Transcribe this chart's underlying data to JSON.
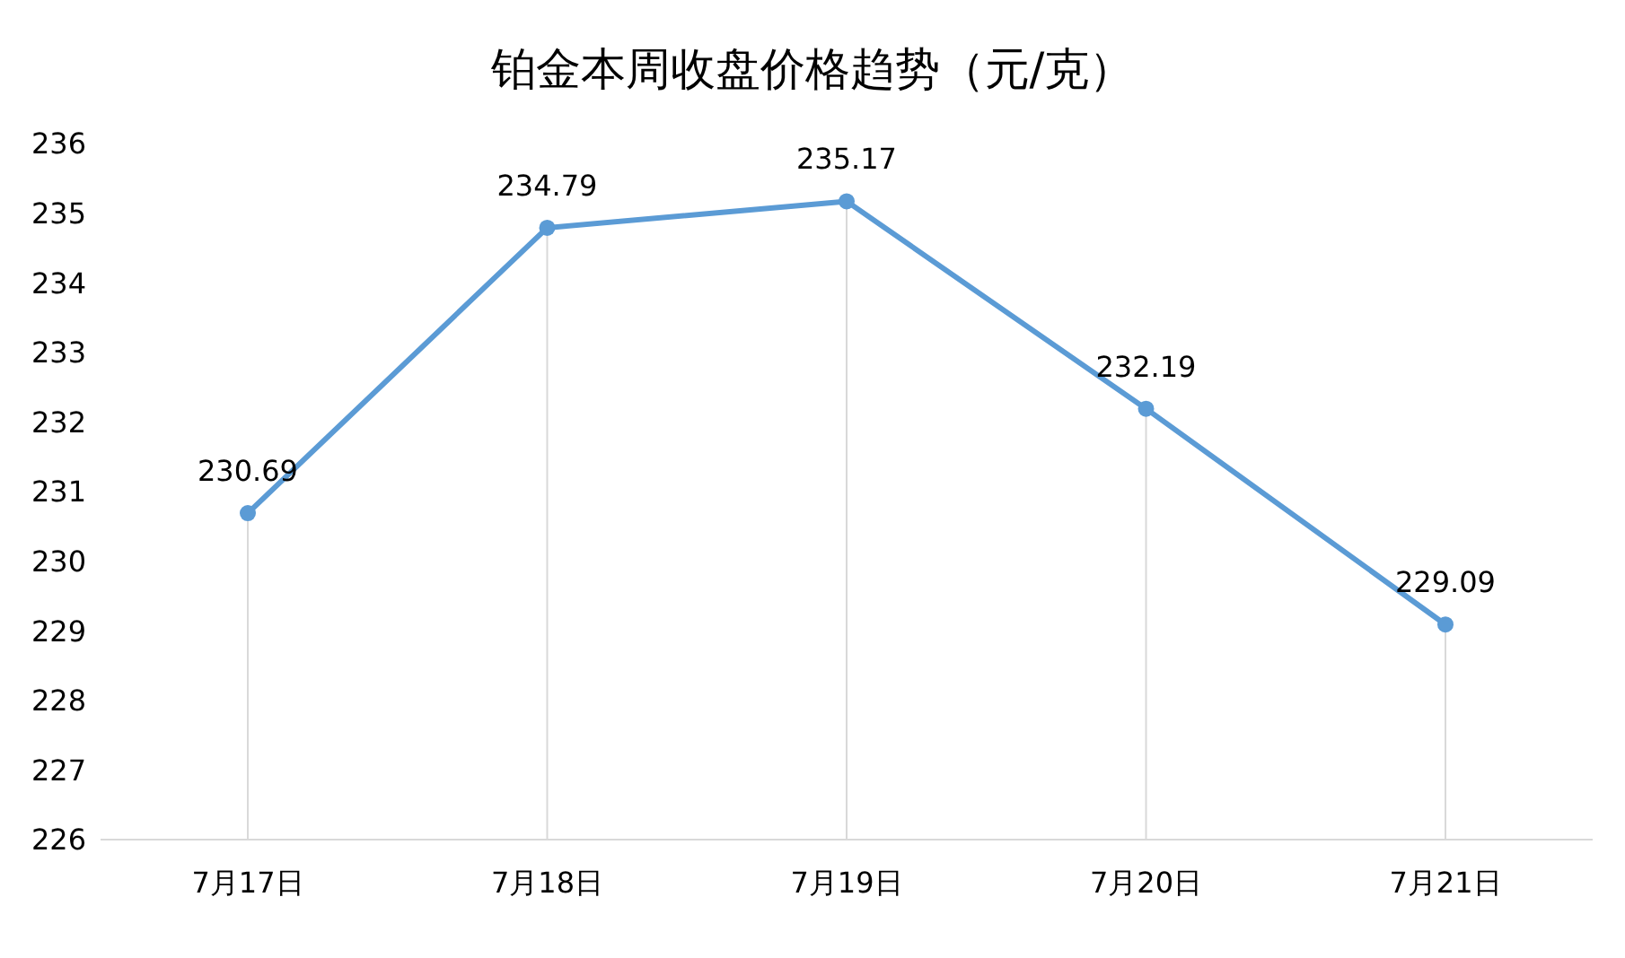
{
  "chart_data": {
    "type": "line",
    "title": "铂金本周收盘价格趋势（元/克）",
    "categories": [
      "7月17日",
      "7月18日",
      "7月19日",
      "7月20日",
      "7月21日"
    ],
    "series": [
      {
        "color": "#5b9bd5",
        "values": [
          230.69,
          234.79,
          235.17,
          232.19,
          229.09
        ]
      }
    ],
    "ylim": [
      226,
      236
    ],
    "yticks": [
      226,
      227,
      228,
      229,
      230,
      231,
      232,
      233,
      234,
      235,
      236
    ],
    "data_labels": true,
    "marker": "circle",
    "line_style": "solid",
    "grid": "x",
    "legend": false
  }
}
